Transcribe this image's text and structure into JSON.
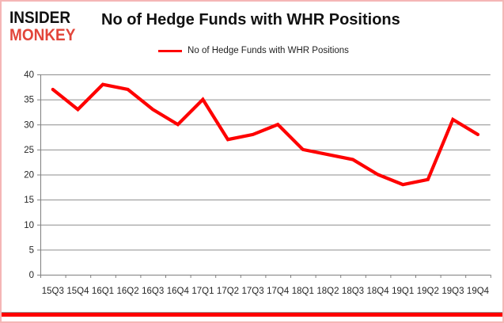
{
  "logo": {
    "line1": "INSIDER",
    "line2": "MONKEY"
  },
  "header": {
    "title": "No of Hedge Funds with WHR Positions"
  },
  "legend": {
    "label": "No of Hedge Funds with WHR Positions",
    "swatch_color": "#fe0000"
  },
  "colors": {
    "series_line": "#fe0000",
    "grid": "#8e8e8e",
    "axis": "#7f7f7f",
    "tick_text": "#262626",
    "logo_red": "#e2453a",
    "frame_border": "#f5b6b6",
    "bottom_bar": "#fe0000"
  },
  "chart_data": {
    "type": "line",
    "title": "No of Hedge Funds with WHR Positions",
    "categories": [
      "15Q3",
      "15Q4",
      "16Q1",
      "16Q2",
      "16Q3",
      "16Q4",
      "17Q1",
      "17Q2",
      "17Q3",
      "17Q4",
      "18Q1",
      "18Q2",
      "18Q3",
      "18Q4",
      "19Q1",
      "19Q2",
      "19Q3",
      "19Q4"
    ],
    "series": [
      {
        "name": "No of Hedge Funds with WHR Positions",
        "color": "#fe0000",
        "values": [
          37,
          33,
          38,
          37,
          33,
          30,
          35,
          27,
          28,
          30,
          25,
          24,
          23,
          20,
          18,
          19,
          31,
          28
        ]
      }
    ],
    "xlabel": "",
    "ylabel": "",
    "ylim": [
      0,
      40
    ],
    "yticks": [
      0,
      5,
      10,
      15,
      20,
      25,
      30,
      35,
      40
    ],
    "grid": "horizontal",
    "legend_position": "top-center"
  }
}
